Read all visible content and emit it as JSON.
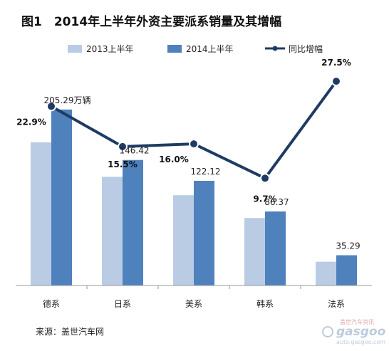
{
  "chart_data": {
    "type": "bar",
    "title": "图1　2014年上半年外资主要派系销量及其增幅",
    "categories": [
      "德系",
      "日系",
      "美系",
      "韩系",
      "法系"
    ],
    "series": [
      {
        "name": "2013上半年",
        "kind": "bar",
        "color": "#b9cce4",
        "values": [
          167.1,
          126.8,
          105.3,
          78.7,
          27.7
        ]
      },
      {
        "name": "2014上半年",
        "kind": "bar",
        "color": "#4f81bd",
        "values": [
          205.29,
          146.42,
          122.12,
          86.37,
          35.29
        ]
      },
      {
        "name": "同比增幅",
        "kind": "line",
        "color": "#1f3b64",
        "values": [
          22.9,
          15.5,
          16.0,
          9.7,
          27.5
        ]
      }
    ],
    "bar_value_labels": [
      "205.29万辆",
      "146.42",
      "122.12",
      "86.37",
      "35.29"
    ],
    "growth_labels": [
      "22.9%",
      "15.5%",
      "16.0%",
      "9.7%",
      "27.5%"
    ],
    "bar_ylim": [
      0,
      250
    ],
    "growth_ylim": [
      -10,
      30
    ],
    "legend_position": "top",
    "grid": false,
    "xlabel": "",
    "ylabel": ""
  },
  "source_text": "来源：盖世汽车网",
  "watermark": {
    "brand": "gasgoo",
    "line1": "盖世汽车资讯",
    "url": "auto.gasgoo.com"
  }
}
